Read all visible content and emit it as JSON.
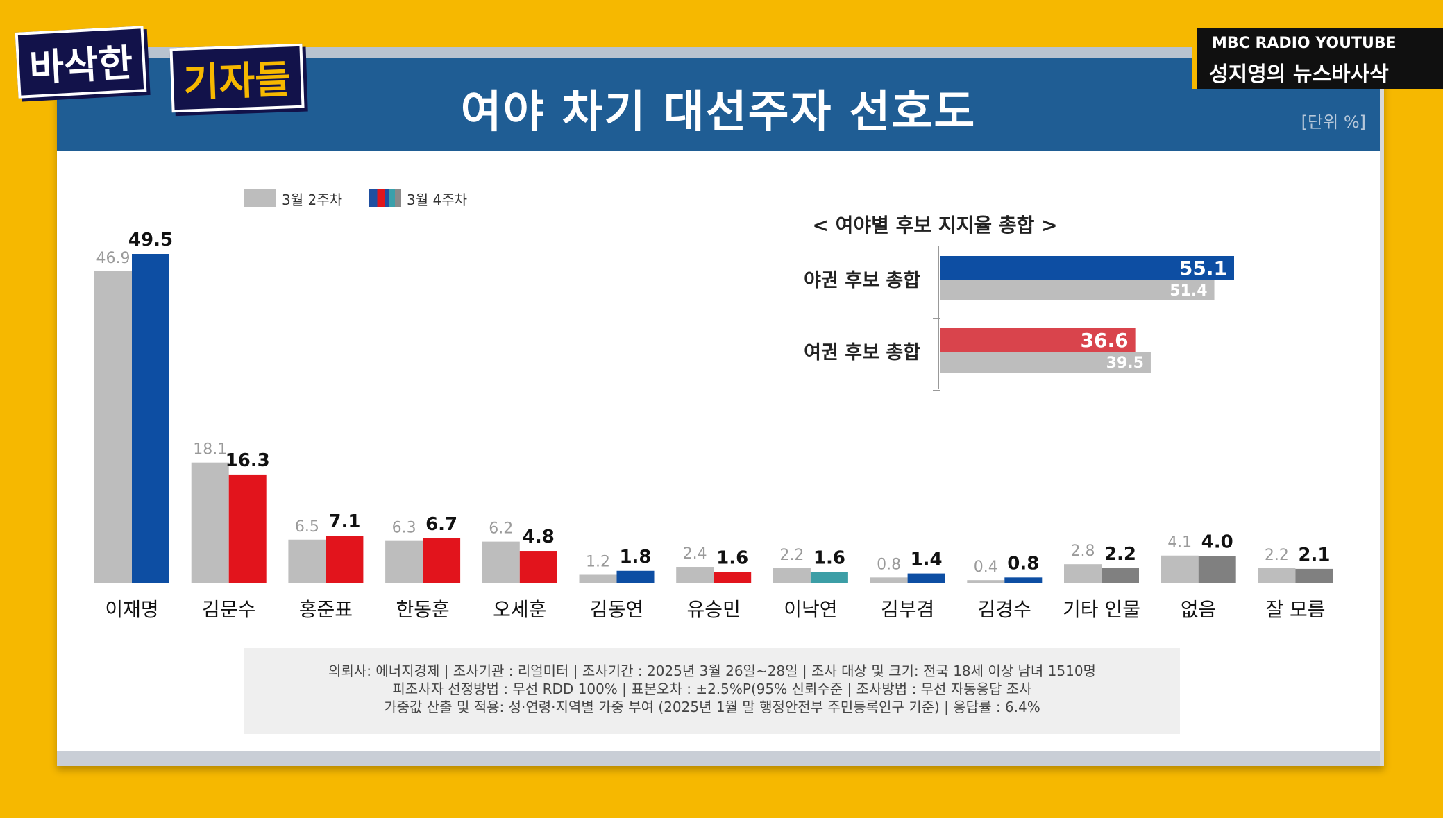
{
  "header": {
    "show_logo": [
      "바삭한",
      "기자들"
    ],
    "channel": "MBC RADIO YOUTUBE",
    "program": "성지영의 뉴스바사삭"
  },
  "colors": {
    "title_bar": "#1f5d94",
    "gray": "#bdbdbd",
    "blue": "#0d4ea3",
    "red": "#e2141c",
    "teal": "#3c9ea6",
    "dark_gray": "#808080",
    "inset_blue": "#0d4ea3",
    "inset_red": "#d9444c"
  },
  "chart_data": [
    {
      "type": "bar",
      "title": "여야 차기 대선주자 선호도",
      "unit_label": "[단위 %]",
      "legend": [
        "3월 2주차",
        "3월 4주차"
      ],
      "categories": [
        "이재명",
        "김문수",
        "홍준표",
        "한동훈",
        "오세훈",
        "김동연",
        "유승민",
        "이낙연",
        "김부겸",
        "김경수",
        "기타 인물",
        "없음",
        "잘 모름"
      ],
      "series": [
        {
          "name": "3월 2주차",
          "values": [
            46.9,
            18.1,
            6.5,
            6.3,
            6.2,
            1.2,
            2.4,
            2.2,
            0.8,
            0.4,
            2.8,
            4.1,
            2.2
          ]
        },
        {
          "name": "3월 4주차",
          "values": [
            49.5,
            16.3,
            7.1,
            6.7,
            4.8,
            1.8,
            1.6,
            1.6,
            1.4,
            0.8,
            2.2,
            4.0,
            2.1
          ]
        }
      ],
      "series2_colors": [
        "blue",
        "red",
        "red",
        "red",
        "red",
        "blue",
        "red",
        "teal",
        "blue",
        "blue",
        "dark_gray",
        "dark_gray",
        "dark_gray"
      ],
      "ylim": [
        0,
        49.5
      ]
    },
    {
      "type": "bar",
      "orientation": "horizontal",
      "title": "< 여야별 후보 지지율 총합 >",
      "categories": [
        "야권 후보 총합",
        "여권 후보 총합"
      ],
      "series": [
        {
          "name": "3월 4주차",
          "values": [
            55.1,
            36.6
          ]
        },
        {
          "name": "3월 2주차",
          "values": [
            51.4,
            39.5
          ]
        }
      ],
      "xlim": [
        0,
        55.1
      ]
    }
  ],
  "footer": {
    "line1": "의뢰사: 에너지경제 | 조사기관 : 리얼미터  |  조사기간 : 2025년 3월 26일~28일 | 조사 대상 및 크기: 전국 18세 이상 남녀 1510명",
    "line2": "피조사자 선정방법 : 무선 RDD 100% | 표본오차 : ±2.5%P(95% 신뢰수준 | 조사방법 : 무선 자동응답 조사",
    "line3": "가중값 산출 및 적용: 성·연령·지역별 가중 부여 (2025년 1월 말 행정안전부 주민등록인구 기준) | 응답률 : 6.4%"
  }
}
